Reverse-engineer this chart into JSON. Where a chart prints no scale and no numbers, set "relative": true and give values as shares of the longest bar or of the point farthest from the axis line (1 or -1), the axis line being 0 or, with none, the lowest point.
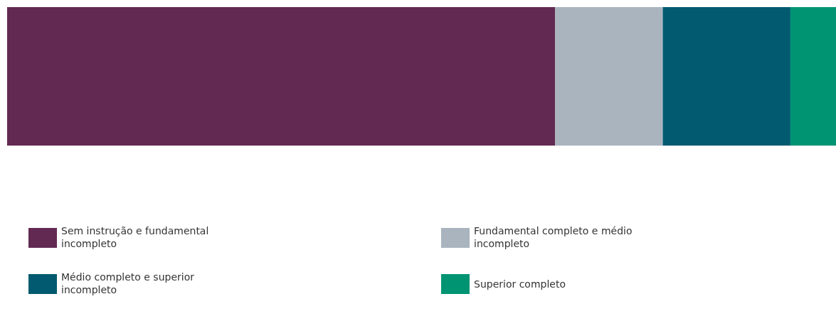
{
  "chart_data": {
    "type": "bar",
    "orientation": "horizontal",
    "stacked": true,
    "relative": true,
    "categories": [
      null
    ],
    "legend": "bottom",
    "series": [
      {
        "name": "Sem instrução e fundamental incompleto",
        "color": "#622a52",
        "values": [
          0.661
        ]
      },
      {
        "name": "Fundamental completo e médio incompleto",
        "color": "#a9b4bf",
        "values": [
          0.13
        ]
      },
      {
        "name": "Médio completo e superior incompleto",
        "color": "#015a6f",
        "values": [
          0.154
        ]
      },
      {
        "name": "Superior completo",
        "color": "#009473",
        "values": [
          0.055
        ]
      }
    ]
  }
}
